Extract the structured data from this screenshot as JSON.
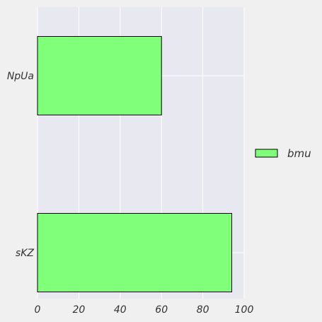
{
  "chart_data": {
    "type": "bar",
    "orientation": "horizontal",
    "categories": [
      "sKZ",
      "NpUa"
    ],
    "series": [
      {
        "name": "bmu",
        "values": [
          94,
          60
        ]
      }
    ],
    "xlim": [
      0,
      100
    ],
    "xticks": [
      0,
      20,
      40,
      60,
      80,
      100
    ],
    "xtick_labels": [
      "0",
      "20",
      "40",
      "60",
      "80",
      "100"
    ],
    "title": "",
    "xlabel": "",
    "ylabel": "",
    "grid": true,
    "legend_position": "right",
    "colors": {
      "bar_fill": "#80ff7a",
      "bar_edge": "#000000",
      "plot_bg": "#e8e8f0",
      "grid": "#ffffff",
      "page_bg": "#f0f0f0"
    }
  }
}
